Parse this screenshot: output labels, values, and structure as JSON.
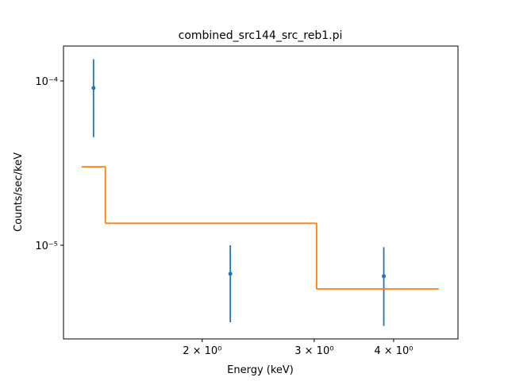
{
  "chart_data": {
    "type": "scatter",
    "title": "combined_src144_src_reb1.pi",
    "x_label": "Energy (keV)",
    "y_label": "Counts/sec/keV",
    "x_scale": "log",
    "y_scale": "log",
    "xlim": [
      1.21,
      5.05
    ],
    "ylim": [
      2.69e-06,
      0.000163
    ],
    "xticks": [
      {
        "value": 2,
        "label": "2 × 10⁰"
      },
      {
        "value": 3,
        "label": "3 × 10⁰"
      },
      {
        "value": 4,
        "label": "4 × 10⁰"
      }
    ],
    "yticks": [
      {
        "value": 1e-05,
        "label": "10⁻⁵"
      },
      {
        "value": 0.0001,
        "label": "10⁻⁴"
      }
    ],
    "series": [
      {
        "kind": "errorbar",
        "color": "#1f77b4",
        "x": [
          1.349,
          2.214,
          3.86
        ],
        "values": [
          9.05e-05,
          6.7e-06,
          6.48e-06
        ],
        "errors": [
          4.5e-05,
          3.3e-06,
          3.25e-06
        ]
      },
      {
        "kind": "step",
        "color": "#ff7f0e",
        "bins": [
          1.292,
          1.408,
          3.026,
          4.71
        ],
        "values": [
          3e-05,
          1.36e-05,
          5.42e-06
        ]
      }
    ]
  }
}
